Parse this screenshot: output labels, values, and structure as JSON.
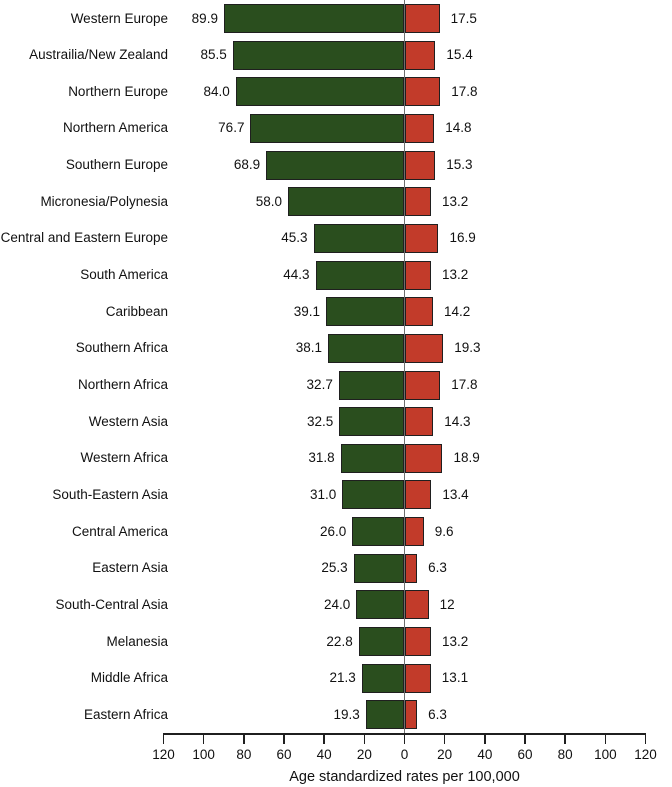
{
  "chart_data": {
    "type": "bar",
    "variant": "diverging-horizontal",
    "title": "",
    "xlabel": "Age standardized rates per 100,000",
    "xlim": [
      -120,
      120
    ],
    "grid": false,
    "legend": "none",
    "axis_tick_labels": [
      "120",
      "100",
      "80",
      "60",
      "40",
      "20",
      "0",
      "20",
      "40",
      "60",
      "80",
      "100",
      "120"
    ],
    "categories": [
      "Western Europe",
      "Austrailia/New Zealand",
      "Northern Europe",
      "Northern America",
      "Southern Europe",
      "Micronesia/Polynesia",
      "Central and Eastern Europe",
      "South America",
      "Caribbean",
      "Southern Africa",
      "Northern Africa",
      "Western Asia",
      "Western Africa",
      "South-Eastern Asia",
      "Central America",
      "Eastern Asia",
      "South-Central Asia",
      "Melanesia",
      "Middle Africa",
      "Eastern Africa"
    ],
    "series": [
      {
        "name": "left-green",
        "color": "#2a4e1e",
        "values": [
          "89.9",
          "85.5",
          "84.0",
          "76.7",
          "68.9",
          "58.0",
          "45.3",
          "44.3",
          "39.1",
          "38.1",
          "32.7",
          "32.5",
          "31.8",
          "31.0",
          "26.0",
          "25.3",
          "24.0",
          "22.8",
          "21.3",
          "19.3"
        ]
      },
      {
        "name": "right-red",
        "color": "#c23b2a",
        "values": [
          "17.5",
          "15.4",
          "17.8",
          "14.8",
          "15.3",
          "13.2",
          "16.9",
          "13.2",
          "14.2",
          "19.3",
          "17.8",
          "14.3",
          "18.9",
          "13.4",
          "9.6",
          "6.3",
          "12",
          "13.2",
          "13.1",
          "6.3"
        ]
      }
    ]
  },
  "colors": {
    "left_bar": "#2a4e1e",
    "right_bar": "#c23b2a",
    "bar_border": "#1f1f1f",
    "zero_line": "#6e6e6e",
    "axis": "#1f1f1f",
    "text": "#111111",
    "background": "#ffffff"
  }
}
